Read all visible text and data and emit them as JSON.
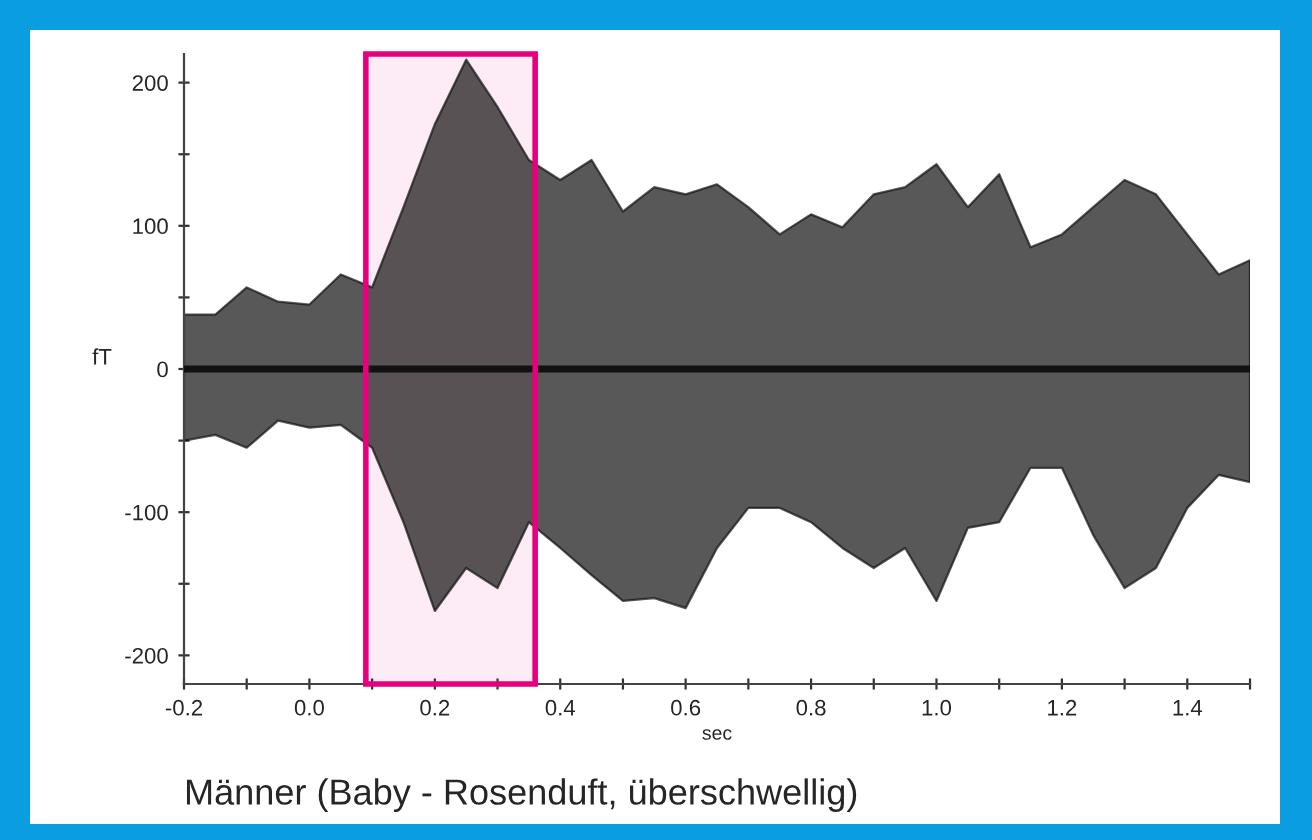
{
  "chart_data": {
    "type": "line",
    "xlabel": "sec",
    "ylabel": "fT",
    "annotations": [
      "Männer (Baby - Rosenduft, überschwellig)"
    ],
    "x": [
      -0.2,
      -0.15,
      -0.1,
      -0.05,
      0,
      0.05,
      0.1,
      0.15,
      0.2,
      0.25,
      0.3,
      0.35,
      0.4,
      0.45,
      0.5,
      0.55,
      0.6,
      0.65,
      0.7,
      0.75,
      0.8,
      0.85,
      0.9,
      0.95,
      1.0,
      1.05,
      1.1,
      1.15,
      1.2,
      1.25,
      1.3,
      1.35,
      1.4,
      1.45,
      1.5
    ],
    "series": [
      {
        "color": "#111111",
        "values": [
          0,
          0,
          0,
          0,
          0,
          0,
          0,
          0,
          0,
          0,
          0,
          0,
          0,
          0,
          0,
          0,
          0,
          0,
          0,
          0,
          0,
          0,
          0,
          0,
          0,
          0,
          0,
          0,
          0,
          0,
          0,
          0,
          0,
          0,
          0
        ],
        "upper": [
          38,
          38,
          57,
          47,
          45,
          66,
          57,
          113,
          171,
          216,
          183,
          146,
          132,
          146,
          110,
          127,
          122,
          129,
          113,
          94,
          108,
          99,
          122,
          127,
          143,
          113,
          136,
          85,
          94,
          113,
          132,
          122,
          94,
          66,
          76
        ],
        "lower": [
          -50,
          -46,
          -55,
          -36,
          -41,
          -39,
          -55,
          -107,
          -169,
          -139,
          -153,
          -107,
          -125,
          -144,
          -162,
          -160,
          -167,
          -125,
          -97,
          -97,
          -107,
          -125,
          -139,
          -125,
          -162,
          -111,
          -107,
          -69,
          -69,
          -116,
          -153,
          -139,
          -97,
          -74,
          -79
        ]
      }
    ],
    "xlim": [
      -0.2,
      1.5
    ],
    "xticks": [
      -0.2,
      {
        "value": -0.1,
        "label": null
      },
      {
        "value": 0,
        "label": "0.0"
      },
      {
        "value": 0.1,
        "label": null
      },
      0.2,
      {
        "value": 0.3,
        "label": null
      },
      0.4,
      {
        "value": 0.5,
        "label": null
      },
      0.6,
      {
        "value": 0.7,
        "label": null
      },
      0.8,
      {
        "value": 0.9,
        "label": null
      },
      {
        "value": 1,
        "label": "1.0"
      },
      {
        "value": 1.1,
        "label": null
      },
      1.2,
      {
        "value": 1.3,
        "label": null
      },
      1.4,
      {
        "value": 1.5,
        "label": null
      }
    ],
    "ylim": [
      -220,
      220
    ],
    "yticks": [
      -200,
      {
        "value": -150,
        "label": null
      },
      -100,
      {
        "value": -50,
        "label": null
      },
      0,
      {
        "value": 50,
        "label": null
      },
      100,
      {
        "value": 150,
        "label": null
      },
      200
    ],
    "bands": [
      {
        "axis": "x",
        "from": 0.09,
        "to": 0.36,
        "color": "#e6007e"
      }
    ],
    "grid": false,
    "legend": false,
    "marker": "none",
    "line_style": "solid"
  }
}
